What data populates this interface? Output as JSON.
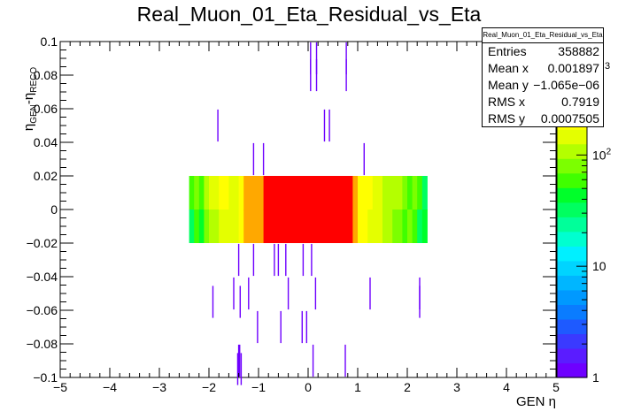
{
  "chart_data": {
    "type": "heatmap",
    "title": "Real_Muon_01_Eta_Residual_vs_Eta",
    "xlabel": "GEN η",
    "ylabel": "η_GEN-η_RECO",
    "xlim": [
      -5,
      5
    ],
    "ylim": [
      -0.1,
      0.1
    ],
    "x_ticks": [
      "−5",
      "−4",
      "−3",
      "−2",
      "−1",
      "0",
      "1",
      "2",
      "3",
      "4",
      "5"
    ],
    "y_ticks": [
      "−0.1",
      "−0.08",
      "−0.06",
      "−0.04",
      "−0.02",
      "0",
      "0.02",
      "0.04",
      "0.06",
      "0.08",
      "0.1"
    ],
    "colorbar": {
      "log_scale": true,
      "tick_labels": [
        "1",
        "10",
        "10²"
      ],
      "tick_values": [
        1,
        10,
        100
      ],
      "partial_top_label": "3",
      "palette": [
        "#6e00ff",
        "#5a1cff",
        "#3a3aff",
        "#1e5aff",
        "#0a7cff",
        "#0099ff",
        "#00b6ff",
        "#00d4ff",
        "#00f0ff",
        "#00ffd0",
        "#00ff9a",
        "#00ff60",
        "#00ff2a",
        "#40ff00",
        "#7cff00",
        "#b4ff00",
        "#e4ff00",
        "#ffff00",
        "#ffd800",
        "#ffa800",
        "#ff7000",
        "#ff2000",
        "#ff0000"
      ]
    },
    "core_band": {
      "y_range": [
        -0.02,
        0.02
      ],
      "x_edges": [
        -2.4,
        -2.3,
        -2.2,
        -2.1,
        -2.0,
        -1.8,
        -1.6,
        -1.4,
        -1.3,
        -1.2,
        -0.9,
        0.9,
        1.0,
        1.2,
        1.3,
        1.5,
        1.7,
        1.9,
        2.0,
        2.1,
        2.2,
        2.3,
        2.4
      ],
      "upper_colors": [
        "#40ff00",
        "#7cff00",
        "#40ff00",
        "#b4ff00",
        "#e4ff00",
        "#ffff00",
        "#e4ff00",
        "#ffff00",
        "#ffa800",
        "#ffa800",
        "#ff0000",
        "#ffa800",
        "#ffff00",
        "#ffff00",
        "#e4ff00",
        "#b4ff00",
        "#b4ff00",
        "#7cff00",
        "#40ff00",
        "#7cff00",
        "#40ff00",
        "#00ff60"
      ],
      "lower_colors": [
        "#00ff60",
        "#40ff00",
        "#00ff2a",
        "#7cff00",
        "#b4ff00",
        "#e4ff00",
        "#e4ff00",
        "#ffff00",
        "#ffa800",
        "#ffa800",
        "#ff0000",
        "#ffa800",
        "#ffff00",
        "#e4ff00",
        "#e4ff00",
        "#b4ff00",
        "#7cff00",
        "#40ff00",
        "#7cff00",
        "#40ff00",
        "#00ff60",
        "#00ff2a"
      ]
    },
    "outlier_points": [
      {
        "x": 0.05,
        "y": 0.09
      },
      {
        "x": 0.17,
        "y": 0.09
      },
      {
        "x": 0.77,
        "y": 0.09
      },
      {
        "x": 0.05,
        "y": 0.08
      },
      {
        "x": 0.17,
        "y": 0.08
      },
      {
        "x": 0.77,
        "y": 0.08
      },
      {
        "x": -1.82,
        "y": 0.05
      },
      {
        "x": 0.33,
        "y": 0.05
      },
      {
        "x": 0.43,
        "y": 0.05
      },
      {
        "x": -1.1,
        "y": 0.03
      },
      {
        "x": -0.9,
        "y": 0.03
      },
      {
        "x": 1.13,
        "y": 0.03
      },
      {
        "x": -1.4,
        "y": -0.03
      },
      {
        "x": -1.1,
        "y": -0.03
      },
      {
        "x": -0.68,
        "y": -0.03
      },
      {
        "x": -0.6,
        "y": -0.03
      },
      {
        "x": -0.45,
        "y": -0.03
      },
      {
        "x": -0.1,
        "y": -0.03
      },
      {
        "x": 0.07,
        "y": -0.03
      },
      {
        "x": -1.5,
        "y": -0.05
      },
      {
        "x": -1.2,
        "y": -0.05
      },
      {
        "x": -0.4,
        "y": -0.05
      },
      {
        "x": 0.15,
        "y": -0.05
      },
      {
        "x": 1.25,
        "y": -0.05
      },
      {
        "x": 2.25,
        "y": -0.05
      },
      {
        "x": -1.92,
        "y": -0.055
      },
      {
        "x": -1.37,
        "y": -0.055
      },
      {
        "x": 2.25,
        "y": -0.055
      },
      {
        "x": -1.02,
        "y": -0.07
      },
      {
        "x": -0.55,
        "y": -0.07
      },
      {
        "x": -0.12,
        "y": -0.07
      },
      {
        "x": -0.03,
        "y": -0.07
      },
      {
        "x": -1.4,
        "y": -0.09
      },
      {
        "x": -1.38,
        "y": -0.09
      },
      {
        "x": 0.1,
        "y": -0.09
      },
      {
        "x": 0.75,
        "y": -0.09
      },
      {
        "x": -1.42,
        "y": -0.095
      },
      {
        "x": -1.35,
        "y": -0.095
      }
    ]
  },
  "stats": {
    "title": "Real_Muon_01_Eta_Residual_vs_Eta",
    "rows": [
      {
        "label": "Entries",
        "value": "358882"
      },
      {
        "label": "Mean x",
        "value": "0.001897"
      },
      {
        "label": "Mean y",
        "value": "−1.065e−06"
      },
      {
        "label": "RMS x",
        "value": "0.7919"
      },
      {
        "label": "RMS y",
        "value": "0.0007505"
      }
    ]
  }
}
